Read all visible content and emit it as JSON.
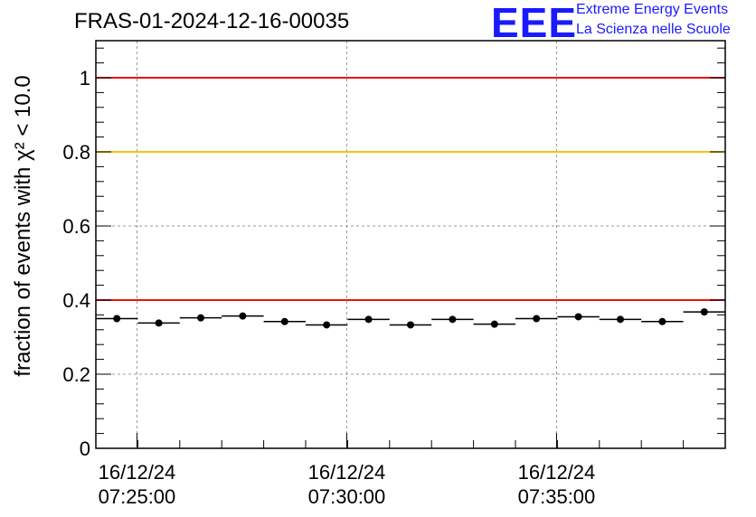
{
  "header": {
    "title": "FRAS-01-2024-12-16-00035",
    "logo_mark": "EEE",
    "logo_line1": "Extreme Energy Events",
    "logo_line2": "La Scienza nelle Scuole"
  },
  "chart_data": {
    "type": "scatter",
    "title": "FRAS-01-2024-12-16-00035",
    "ylabel": "fraction of events with χ² < 10.0",
    "ylim": [
      0,
      1.1
    ],
    "yticks": [
      {
        "value": 0,
        "label": "0"
      },
      {
        "value": 0.2,
        "label": "0.2"
      },
      {
        "value": 0.4,
        "label": "0.4"
      },
      {
        "value": 0.6,
        "label": "0.6"
      },
      {
        "value": 0.8,
        "label": "0.8"
      },
      {
        "value": 1,
        "label": "1"
      }
    ],
    "xticks": [
      {
        "minute": 0,
        "date": "16/12/24",
        "time": "07:25:00"
      },
      {
        "minute": 5,
        "date": "16/12/24",
        "time": "07:30:00"
      },
      {
        "minute": 10,
        "date": "16/12/24",
        "time": "07:35:00"
      }
    ],
    "x_start": "16/12/24 07:24:01",
    "bin_width_s": 60,
    "xlim_minutes": [
      -0.98,
      14.02
    ],
    "grid": true,
    "reference_lines": [
      {
        "value": 1.0,
        "color": "#e8140f"
      },
      {
        "value": 0.8,
        "color": "#f5c400"
      },
      {
        "value": 0.4,
        "color": "#e8140f"
      }
    ],
    "series": [
      {
        "values": [
          0.35,
          0.338,
          0.352,
          0.357,
          0.342,
          0.333,
          0.348,
          0.333,
          0.348,
          0.335,
          0.35,
          0.355,
          0.348,
          0.342,
          0.368
        ]
      }
    ]
  }
}
